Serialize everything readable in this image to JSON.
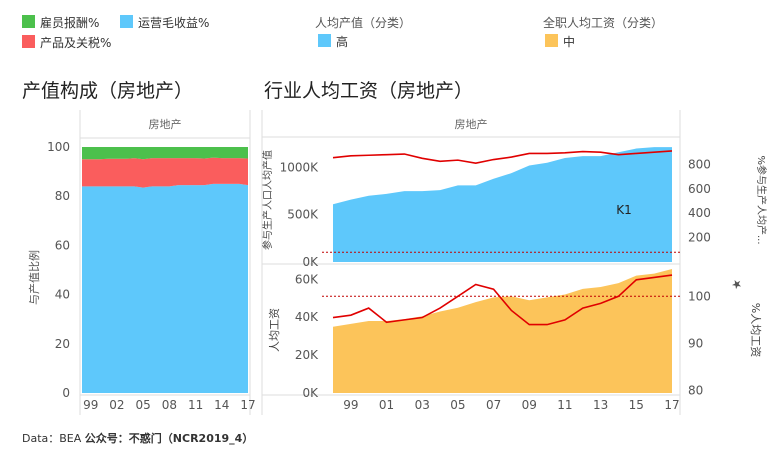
{
  "legend": {
    "items": [
      {
        "label": "雇员报酬%",
        "color": "#4cc04c"
      },
      {
        "label": "运营毛收益%",
        "color": "#5ec8fb"
      },
      {
        "label": "产品及关税%",
        "color": "#fa5d5d"
      }
    ],
    "groups": [
      {
        "title": "人均产值（分类）",
        "label": "高",
        "color": "#5ec8fb"
      },
      {
        "title": "全职人均工资（分类）",
        "label": "中",
        "color": "#fcc45a"
      }
    ]
  },
  "titles": {
    "left": "产值构成（房地产）",
    "right": "行业人均工资（房地产）"
  },
  "footer": {
    "source": "Data：BEA",
    "credit": "公众号：不惑门（NCR2019_4）"
  },
  "chart_data": [
    {
      "type": "area",
      "facet": "房地产",
      "ylabel": "与产值比例",
      "ylim": [
        0,
        100
      ],
      "yticks": [
        0,
        20,
        40,
        60,
        80,
        100
      ],
      "xticks": [
        "99",
        "02",
        "05",
        "08",
        "11",
        "14",
        "17"
      ],
      "x": [
        1998,
        1999,
        2000,
        2001,
        2002,
        2003,
        2004,
        2005,
        2006,
        2007,
        2008,
        2009,
        2010,
        2011,
        2012,
        2013,
        2014,
        2015,
        2016,
        2017
      ],
      "series": [
        {
          "name": "运营毛收益%",
          "color": "#5ec8fb",
          "values": [
            84,
            84,
            84,
            84,
            84,
            84,
            84,
            83.5,
            84,
            84,
            84,
            84.5,
            84.5,
            84.5,
            84.5,
            85,
            85,
            85,
            85,
            84.5
          ]
        },
        {
          "name": "产品及关税%",
          "color": "#fa5d5d",
          "values": [
            11,
            11,
            11,
            11.2,
            11.2,
            11.2,
            11.5,
            11.5,
            11.5,
            11.5,
            11.5,
            11,
            11,
            11,
            10.8,
            10.7,
            10.5,
            10.5,
            10.5,
            10.8
          ]
        },
        {
          "name": "雇员报酬%",
          "color": "#4cc04c",
          "values": [
            5,
            5,
            5,
            4.8,
            4.8,
            4.8,
            4.5,
            5,
            4.5,
            4.5,
            4.5,
            4.5,
            4.5,
            4.5,
            4.7,
            4.3,
            4.5,
            4.5,
            4.5,
            4.7
          ]
        }
      ]
    },
    {
      "type": "area",
      "facet": "房地产",
      "ylabel": "参与生产人口人均产值",
      "ylim": [
        0,
        1290
      ],
      "yticks": [
        0,
        500,
        1000
      ],
      "yticklabels": [
        "0K",
        "500K",
        "1000K"
      ],
      "y2label": "%参与生产人均产...",
      "y2lim": [
        0,
        1000
      ],
      "y2ticks": [
        200,
        400,
        600,
        800
      ],
      "x": [
        1998,
        1999,
        2000,
        2001,
        2002,
        2003,
        2004,
        2005,
        2006,
        2007,
        2008,
        2009,
        2010,
        2011,
        2012,
        2013,
        2014,
        2015,
        2016,
        2017
      ],
      "area_series": {
        "name": "高",
        "color": "#5ec8fb",
        "values": [
          610,
          660,
          700,
          720,
          750,
          750,
          760,
          810,
          810,
          880,
          940,
          1020,
          1050,
          1100,
          1120,
          1120,
          1160,
          1200,
          1215,
          1215
        ]
      },
      "line_series": {
        "color": "#e00000",
        "values": [
          855,
          870,
          875,
          880,
          885,
          850,
          825,
          835,
          810,
          840,
          860,
          890,
          890,
          895,
          905,
          900,
          880,
          890,
          900,
          910
        ]
      },
      "reference_line": 80,
      "annotation": "K1"
    },
    {
      "type": "area",
      "ylabel": "人均工资",
      "ylim": [
        0,
        66000
      ],
      "yticks": [
        0,
        20000,
        40000,
        60000
      ],
      "yticklabels": [
        "0K",
        "20K",
        "40K",
        "60K"
      ],
      "y2label": "%人均工资",
      "y2lim": [
        79.5,
        106
      ],
      "y2ticks": [
        80,
        90,
        100
      ],
      "x": [
        1998,
        1999,
        2000,
        2001,
        2002,
        2003,
        2004,
        2005,
        2006,
        2007,
        2008,
        2009,
        2010,
        2011,
        2012,
        2013,
        2014,
        2015,
        2016,
        2017
      ],
      "xticks": [
        "99",
        "01",
        "03",
        "05",
        "07",
        "09",
        "11",
        "13",
        "15",
        "17"
      ],
      "area_series": {
        "name": "中",
        "color": "#fcc45a",
        "values": [
          35000,
          36500,
          38000,
          38000,
          39000,
          40500,
          43000,
          45000,
          48000,
          50500,
          51000,
          49000,
          50500,
          52000,
          55000,
          56000,
          58000,
          62000,
          63000,
          65500
        ]
      },
      "line_series": {
        "color": "#e00000",
        "values": [
          95.5,
          96,
          97.5,
          94.5,
          95,
          95.5,
          97.5,
          100,
          102.5,
          101.5,
          97,
          94,
          94,
          95,
          97.5,
          98.5,
          100,
          103.5,
          104,
          104.5
        ]
      },
      "reference_line": 100
    }
  ]
}
